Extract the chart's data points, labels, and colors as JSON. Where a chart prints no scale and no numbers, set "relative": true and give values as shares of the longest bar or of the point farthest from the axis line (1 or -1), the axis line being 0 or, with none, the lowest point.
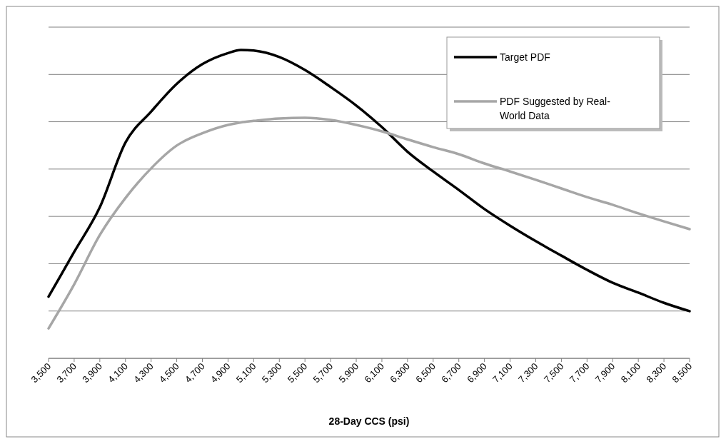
{
  "chart_data": {
    "type": "line",
    "xlabel": "28-Day CCS (psi)",
    "relative": true,
    "grid": "y",
    "legend": "top right",
    "x": [
      3500,
      3700,
      3900,
      4100,
      4300,
      4500,
      4700,
      4900,
      5000,
      5100,
      5300,
      5500,
      5700,
      5900,
      6100,
      6300,
      6500,
      6700,
      6900,
      7100,
      7300,
      7500,
      7700,
      7900,
      8100,
      8300,
      8500
    ],
    "xlim": [
      3500,
      8500
    ],
    "xticks": [
      {
        "value": 3500,
        "label": "3,500"
      },
      {
        "value": 3700,
        "label": "3,700"
      },
      {
        "value": 3900,
        "label": "3,900"
      },
      {
        "value": 4100,
        "label": "4,100"
      },
      {
        "value": 4300,
        "label": "4,300"
      },
      {
        "value": 4500,
        "label": "4,500"
      },
      {
        "value": 4700,
        "label": "4,700"
      },
      {
        "value": 4900,
        "label": "4,900"
      },
      {
        "value": 5100,
        "label": "5,100"
      },
      {
        "value": 5300,
        "label": "5,300"
      },
      {
        "value": 5500,
        "label": "5,500"
      },
      {
        "value": 5700,
        "label": "5,700"
      },
      {
        "value": 5900,
        "label": "5,900"
      },
      {
        "value": 6100,
        "label": "6,100"
      },
      {
        "value": 6300,
        "label": "6,300"
      },
      {
        "value": 6500,
        "label": "6,500"
      },
      {
        "value": 6700,
        "label": "6,700"
      },
      {
        "value": 6900,
        "label": "6,900"
      },
      {
        "value": 7100,
        "label": "7,100"
      },
      {
        "value": 7300,
        "label": "7,300"
      },
      {
        "value": 7500,
        "label": "7,500"
      },
      {
        "value": 7700,
        "label": "7,700"
      },
      {
        "value": 7900,
        "label": "7,900"
      },
      {
        "value": 8100,
        "label": "8,100"
      },
      {
        "value": 8300,
        "label": "8,300"
      },
      {
        "value": 8500,
        "label": "8,500"
      }
    ],
    "series": [
      {
        "name": "Target PDF",
        "color": "#000000",
        "values": [
          0.2,
          0.345,
          0.49,
          0.7,
          0.8,
          0.89,
          0.954,
          0.99,
          1.0,
          0.998,
          0.977,
          0.935,
          0.88,
          0.82,
          0.75,
          0.67,
          0.606,
          0.546,
          0.484,
          0.43,
          0.38,
          0.333,
          0.287,
          0.245,
          0.213,
          0.18,
          0.153
        ]
      },
      {
        "name": "PDF Suggested by Real-World Data",
        "color": "#a6a6a6",
        "values": [
          0.097,
          0.24,
          0.4,
          0.52,
          0.616,
          0.69,
          0.73,
          0.757,
          0.765,
          0.77,
          0.778,
          0.78,
          0.773,
          0.757,
          0.736,
          0.71,
          0.685,
          0.662,
          0.632,
          0.606,
          0.579,
          0.551,
          0.523,
          0.498,
          0.47,
          0.444,
          0.419
        ]
      }
    ]
  }
}
